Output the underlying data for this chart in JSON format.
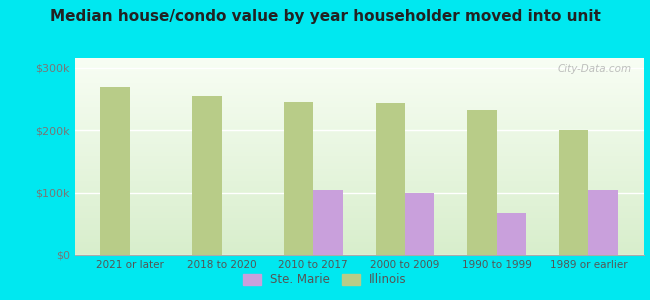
{
  "title": "Median house/condo value by year householder moved into unit",
  "categories": [
    "2021 or later",
    "2018 to 2020",
    "2010 to 2017",
    "2000 to 2009",
    "1990 to 1999",
    "1989 or earlier"
  ],
  "ste_marie": [
    0,
    0,
    105000,
    100000,
    68000,
    105000
  ],
  "illinois": [
    270000,
    255000,
    245000,
    243000,
    232000,
    200000
  ],
  "ste_marie_color": "#c9a0dc",
  "illinois_color": "#b8cc88",
  "bg_outer": "#00e8f0",
  "ylabel_color": "#777777",
  "title_color": "#222222",
  "yticks": [
    0,
    100000,
    200000,
    300000
  ],
  "ytick_labels": [
    "$0",
    "$100k",
    "$200k",
    "$300k"
  ],
  "ylim": [
    0,
    315000
  ],
  "bar_width": 0.32,
  "legend_ste_marie": "Ste. Marie",
  "legend_illinois": "Illinois",
  "watermark": "City-Data.com"
}
